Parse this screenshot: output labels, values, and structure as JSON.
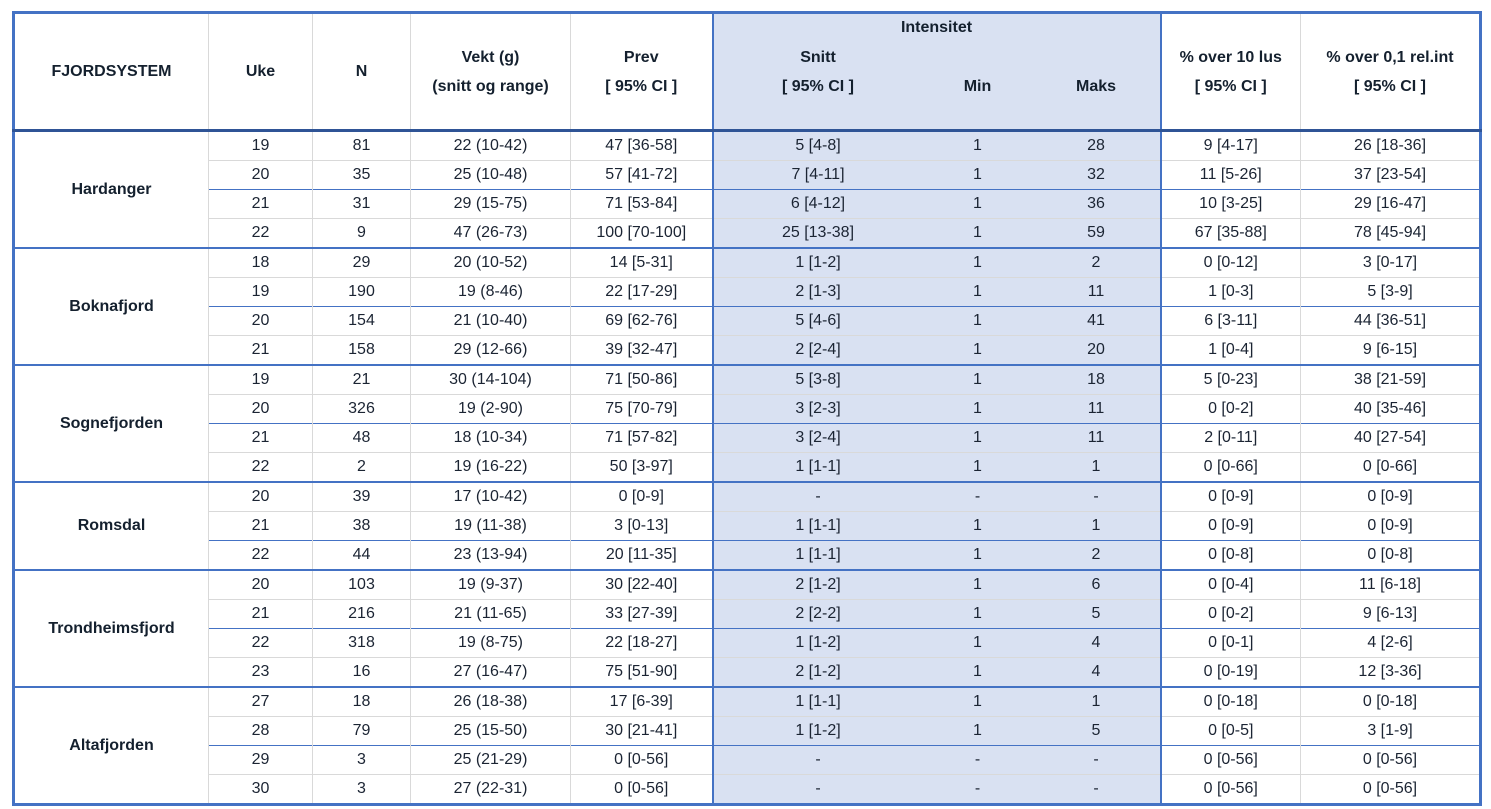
{
  "table": {
    "header": {
      "fjordsystem": "FJORDSYSTEM",
      "uke": "Uke",
      "n": "N",
      "vekt_line1": "Vekt (g)",
      "vekt_line2": "(snitt og range)",
      "prev_line1": "Prev",
      "prev_line2": "[ 95% CI ]",
      "intensitet": "Intensitet",
      "snitt_line1": "Snitt",
      "snitt_line2": "[ 95% CI ]",
      "min": "Min",
      "maks": "Maks",
      "over10_line1": "% over 10 lus",
      "over10_line2": "[ 95% CI ]",
      "over01_line1": "% over 0,1 rel.int",
      "over01_line2": "[ 95% CI ]"
    },
    "colors": {
      "border_blue": "#4472C4",
      "header_bottom_border": "#2F5496",
      "intensitet_fill": "#D9E1F2",
      "light_line": "#D9D9D9",
      "text": "#1B2433"
    },
    "groups": [
      {
        "name": "Hardanger",
        "rows": [
          {
            "uke": "19",
            "n": "81",
            "vekt": "22 (10-42)",
            "prev": "47 [36-58]",
            "snitt": "5 [4-8]",
            "min": "1",
            "maks": "28",
            "over10": "9 [4-17]",
            "over01": "26 [18-36]"
          },
          {
            "uke": "20",
            "n": "35",
            "vekt": "25 (10-48)",
            "prev": "57 [41-72]",
            "snitt": "7 [4-11]",
            "min": "1",
            "maks": "32",
            "over10": "11 [5-26]",
            "over01": "37 [23-54]"
          },
          {
            "uke": "21",
            "n": "31",
            "vekt": "29 (15-75)",
            "prev": "71 [53-84]",
            "snitt": "6 [4-12]",
            "min": "1",
            "maks": "36",
            "over10": "10 [3-25]",
            "over01": "29 [16-47]"
          },
          {
            "uke": "22",
            "n": "9",
            "vekt": "47 (26-73)",
            "prev": "100 [70-100]",
            "snitt": "25 [13-38]",
            "min": "1",
            "maks": "59",
            "over10": "67 [35-88]",
            "over01": "78 [45-94]"
          }
        ]
      },
      {
        "name": "Boknafjord",
        "rows": [
          {
            "uke": "18",
            "n": "29",
            "vekt": "20 (10-52)",
            "prev": "14 [5-31]",
            "snitt": "1 [1-2]",
            "min": "1",
            "maks": "2",
            "over10": "0 [0-12]",
            "over01": "3 [0-17]"
          },
          {
            "uke": "19",
            "n": "190",
            "vekt": "19 (8-46)",
            "prev": "22 [17-29]",
            "snitt": "2 [1-3]",
            "min": "1",
            "maks": "11",
            "over10": "1 [0-3]",
            "over01": "5 [3-9]"
          },
          {
            "uke": "20",
            "n": "154",
            "vekt": "21 (10-40)",
            "prev": "69 [62-76]",
            "snitt": "5 [4-6]",
            "min": "1",
            "maks": "41",
            "over10": "6 [3-11]",
            "over01": "44 [36-51]"
          },
          {
            "uke": "21",
            "n": "158",
            "vekt": "29 (12-66)",
            "prev": "39 [32-47]",
            "snitt": "2 [2-4]",
            "min": "1",
            "maks": "20",
            "over10": "1 [0-4]",
            "over01": "9 [6-15]"
          }
        ]
      },
      {
        "name": "Sognefjorden",
        "rows": [
          {
            "uke": "19",
            "n": "21",
            "vekt": "30 (14-104)",
            "prev": "71 [50-86]",
            "snitt": "5 [3-8]",
            "min": "1",
            "maks": "18",
            "over10": "5 [0-23]",
            "over01": "38 [21-59]"
          },
          {
            "uke": "20",
            "n": "326",
            "vekt": "19 (2-90)",
            "prev": "75 [70-79]",
            "snitt": "3 [2-3]",
            "min": "1",
            "maks": "11",
            "over10": "0 [0-2]",
            "over01": "40 [35-46]"
          },
          {
            "uke": "21",
            "n": "48",
            "vekt": "18 (10-34)",
            "prev": "71 [57-82]",
            "snitt": "3 [2-4]",
            "min": "1",
            "maks": "11",
            "over10": "2 [0-11]",
            "over01": "40 [27-54]"
          },
          {
            "uke": "22",
            "n": "2",
            "vekt": "19 (16-22)",
            "prev": "50 [3-97]",
            "snitt": "1 [1-1]",
            "min": "1",
            "maks": "1",
            "over10": "0 [0-66]",
            "over01": "0 [0-66]"
          }
        ]
      },
      {
        "name": "Romsdal",
        "rows": [
          {
            "uke": "20",
            "n": "39",
            "vekt": "17 (10-42)",
            "prev": "0 [0-9]",
            "snitt": "-",
            "min": "-",
            "maks": "-",
            "over10": "0 [0-9]",
            "over01": "0 [0-9]"
          },
          {
            "uke": "21",
            "n": "38",
            "vekt": "19 (11-38)",
            "prev": "3 [0-13]",
            "snitt": "1 [1-1]",
            "min": "1",
            "maks": "1",
            "over10": "0 [0-9]",
            "over01": "0 [0-9]"
          },
          {
            "uke": "22",
            "n": "44",
            "vekt": "23 (13-94)",
            "prev": "20 [11-35]",
            "snitt": "1 [1-1]",
            "min": "1",
            "maks": "2",
            "over10": "0 [0-8]",
            "over01": "0 [0-8]"
          }
        ]
      },
      {
        "name": "Trondheimsfjord",
        "rows": [
          {
            "uke": "20",
            "n": "103",
            "vekt": "19 (9-37)",
            "prev": "30 [22-40]",
            "snitt": "2 [1-2]",
            "min": "1",
            "maks": "6",
            "over10": "0 [0-4]",
            "over01": "11 [6-18]"
          },
          {
            "uke": "21",
            "n": "216",
            "vekt": "21 (11-65)",
            "prev": "33 [27-39]",
            "snitt": "2 [2-2]",
            "min": "1",
            "maks": "5",
            "over10": "0 [0-2]",
            "over01": "9 [6-13]"
          },
          {
            "uke": "22",
            "n": "318",
            "vekt": "19 (8-75)",
            "prev": "22 [18-27]",
            "snitt": "1 [1-2]",
            "min": "1",
            "maks": "4",
            "over10": "0 [0-1]",
            "over01": "4 [2-6]"
          },
          {
            "uke": "23",
            "n": "16",
            "vekt": "27 (16-47)",
            "prev": "75 [51-90]",
            "snitt": "2 [1-2]",
            "min": "1",
            "maks": "4",
            "over10": "0 [0-19]",
            "over01": "12 [3-36]"
          }
        ]
      },
      {
        "name": "Altafjorden",
        "rows": [
          {
            "uke": "27",
            "n": "18",
            "vekt": "26 (18-38)",
            "prev": "17 [6-39]",
            "snitt": "1 [1-1]",
            "min": "1",
            "maks": "1",
            "over10": "0 [0-18]",
            "over01": "0 [0-18]"
          },
          {
            "uke": "28",
            "n": "79",
            "vekt": "25 (15-50)",
            "prev": "30 [21-41]",
            "snitt": "1 [1-2]",
            "min": "1",
            "maks": "5",
            "over10": "0 [0-5]",
            "over01": "3 [1-9]"
          },
          {
            "uke": "29",
            "n": "3",
            "vekt": "25 (21-29)",
            "prev": "0 [0-56]",
            "snitt": "-",
            "min": "-",
            "maks": "-",
            "over10": "0 [0-56]",
            "over01": "0 [0-56]"
          },
          {
            "uke": "30",
            "n": "3",
            "vekt": "27 (22-31)",
            "prev": "0 [0-56]",
            "snitt": "-",
            "min": "-",
            "maks": "-",
            "over10": "0 [0-56]",
            "over01": "0 [0-56]"
          }
        ]
      }
    ]
  }
}
